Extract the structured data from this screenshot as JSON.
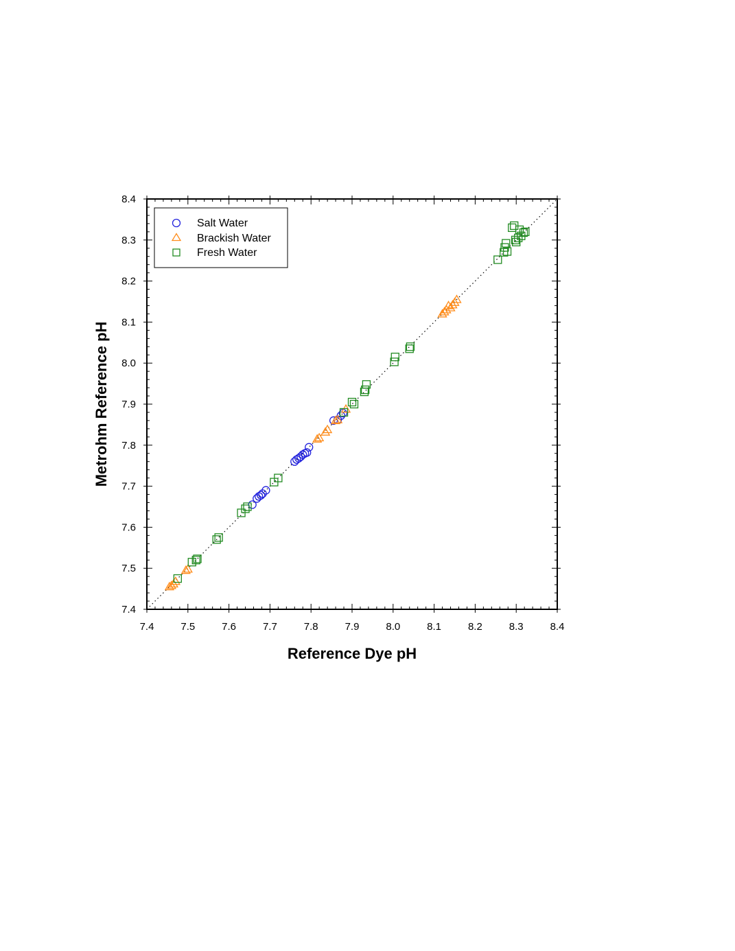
{
  "chart_data": {
    "type": "scatter",
    "xlabel": "Reference Dye pH",
    "ylabel": "Metrohm Reference pH",
    "xlim": [
      7.4,
      8.4
    ],
    "ylim": [
      7.4,
      8.4
    ],
    "x_ticks": [
      "7.4",
      "7.5",
      "7.6",
      "7.7",
      "7.8",
      "7.9",
      "8.0",
      "8.1",
      "8.2",
      "8.3",
      "8.4"
    ],
    "y_ticks": [
      "7.4",
      "7.5",
      "7.6",
      "7.7",
      "7.8",
      "7.9",
      "8.0",
      "8.1",
      "8.2",
      "8.3",
      "8.4"
    ],
    "grid": false,
    "legend_position": "top-left",
    "reference_line": "1:1 dotted",
    "series": [
      {
        "name": "Salt Water",
        "marker": "circle",
        "color": "#2222dd",
        "points": [
          [
            7.657,
            7.655
          ],
          [
            7.668,
            7.67
          ],
          [
            7.673,
            7.675
          ],
          [
            7.678,
            7.678
          ],
          [
            7.682,
            7.682
          ],
          [
            7.69,
            7.69
          ],
          [
            7.76,
            7.76
          ],
          [
            7.765,
            7.765
          ],
          [
            7.77,
            7.768
          ],
          [
            7.775,
            7.772
          ],
          [
            7.78,
            7.777
          ],
          [
            7.785,
            7.78
          ],
          [
            7.79,
            7.782
          ],
          [
            7.795,
            7.795
          ],
          [
            7.855,
            7.86
          ],
          [
            7.865,
            7.862
          ],
          [
            7.873,
            7.872
          ],
          [
            7.878,
            7.878
          ]
        ]
      },
      {
        "name": "Brackish Water",
        "marker": "triangle",
        "color": "#ff8c1a",
        "points": [
          [
            7.455,
            7.455
          ],
          [
            7.46,
            7.458
          ],
          [
            7.465,
            7.462
          ],
          [
            7.47,
            7.468
          ],
          [
            7.495,
            7.495
          ],
          [
            7.5,
            7.498
          ],
          [
            7.815,
            7.815
          ],
          [
            7.82,
            7.818
          ],
          [
            7.835,
            7.832
          ],
          [
            7.84,
            7.838
          ],
          [
            7.86,
            7.86
          ],
          [
            7.865,
            7.862
          ],
          [
            7.885,
            7.888
          ],
          [
            8.12,
            8.12
          ],
          [
            8.125,
            8.125
          ],
          [
            8.13,
            8.13
          ],
          [
            8.135,
            8.14
          ],
          [
            8.14,
            8.135
          ],
          [
            8.145,
            8.142
          ],
          [
            8.15,
            8.148
          ],
          [
            8.155,
            8.155
          ]
        ]
      },
      {
        "name": "Fresh Water",
        "marker": "square",
        "color": "#228b22",
        "points": [
          [
            7.475,
            7.475
          ],
          [
            7.51,
            7.515
          ],
          [
            7.52,
            7.52
          ],
          [
            7.523,
            7.523
          ],
          [
            7.57,
            7.57
          ],
          [
            7.575,
            7.575
          ],
          [
            7.63,
            7.635
          ],
          [
            7.64,
            7.645
          ],
          [
            7.645,
            7.65
          ],
          [
            7.71,
            7.71
          ],
          [
            7.72,
            7.72
          ],
          [
            7.88,
            7.88
          ],
          [
            7.9,
            7.905
          ],
          [
            7.905,
            7.9
          ],
          [
            7.93,
            7.93
          ],
          [
            7.932,
            7.935
          ],
          [
            7.935,
            7.948
          ],
          [
            8.003,
            8.003
          ],
          [
            8.005,
            8.015
          ],
          [
            8.04,
            8.035
          ],
          [
            8.042,
            8.04
          ],
          [
            8.255,
            8.252
          ],
          [
            8.27,
            8.27
          ],
          [
            8.272,
            8.282
          ],
          [
            8.275,
            8.292
          ],
          [
            8.278,
            8.272
          ],
          [
            8.29,
            8.33
          ],
          [
            8.295,
            8.335
          ],
          [
            8.298,
            8.3
          ],
          [
            8.3,
            8.295
          ],
          [
            8.305,
            8.305
          ],
          [
            8.308,
            8.325
          ],
          [
            8.312,
            8.31
          ],
          [
            8.318,
            8.318
          ],
          [
            8.322,
            8.32
          ]
        ]
      }
    ]
  }
}
